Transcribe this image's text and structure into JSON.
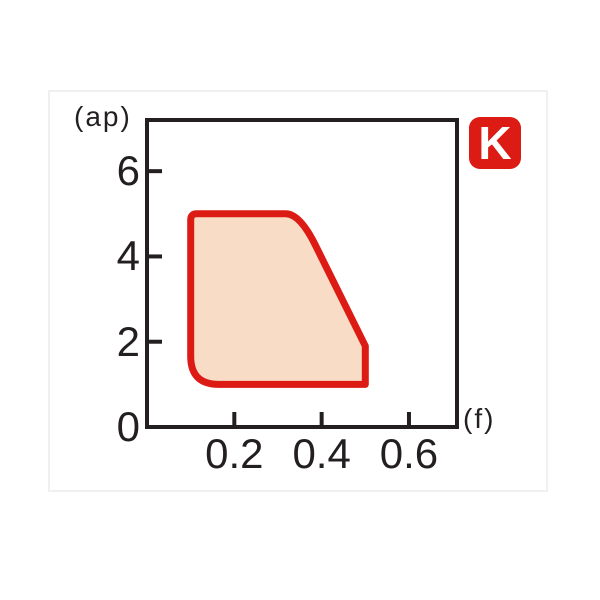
{
  "figure": {
    "background": "#ffffff",
    "card_border_color": "#f0f0f0"
  },
  "badge": {
    "label": "K",
    "bg": "#dc1b14",
    "fg": "#ffffff"
  },
  "chart_data": {
    "type": "area",
    "title": "",
    "xlabel": "(f)",
    "ylabel": "(ap)",
    "axis_color": "#231f20",
    "grid": false,
    "xlim": [
      0,
      0.71
    ],
    "ylim": [
      0,
      7.2
    ],
    "x_ticks": {
      "values": [
        0.2,
        0.4,
        0.6
      ],
      "labels": [
        "0.2",
        "0.4",
        "0.6"
      ]
    },
    "y_ticks": {
      "values": [
        0,
        2,
        4,
        6
      ],
      "labels": [
        "0",
        "2",
        "4",
        "6"
      ]
    },
    "region": {
      "name": "application-area",
      "fill": "#f8dcc6",
      "stroke": "#dc1b14",
      "stroke_width": 7,
      "points_f_ap": [
        [
          0.1,
          5.0
        ],
        [
          0.35,
          5.0
        ],
        [
          0.5,
          1.9
        ],
        [
          0.5,
          1.0
        ],
        [
          0.1,
          1.0
        ]
      ],
      "curved_segment": "boundary from (0.35,5.0) to (0.50,1.9) rounds off the top corner then runs straight; bottom-left corner (0.10,1.0) is rounded"
    }
  }
}
